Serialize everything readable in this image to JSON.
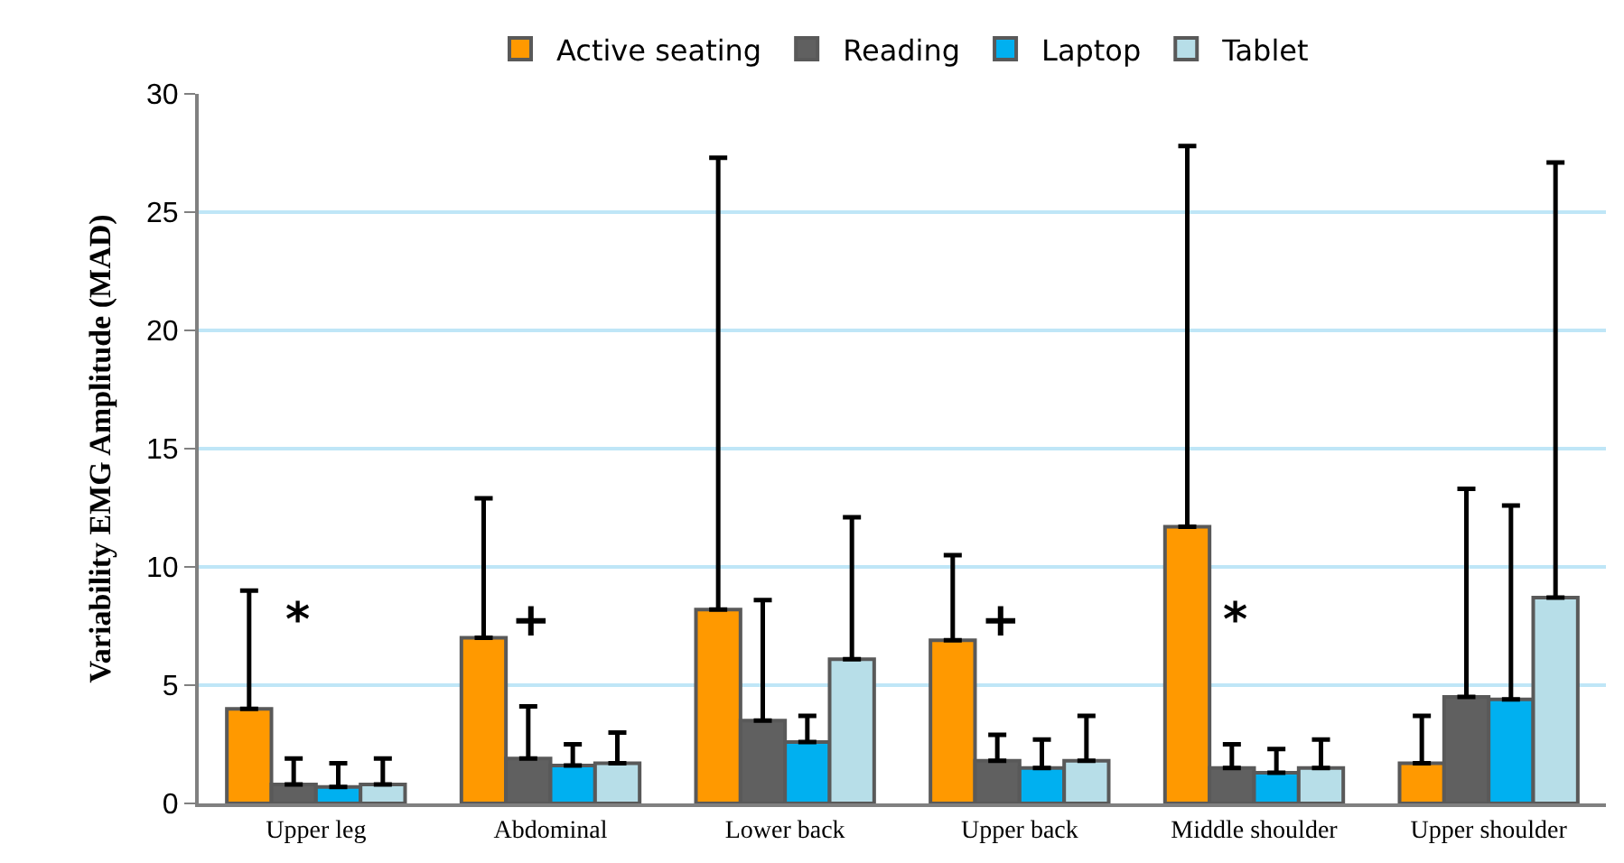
{
  "chart_data": {
    "type": "bar",
    "ylabel": "Variability EMG Amplitude (MAD)",
    "categories": [
      "Upper leg",
      "Abdominal",
      "Lower back",
      "Upper back",
      "Middle shoulder",
      "Upper shoulder"
    ],
    "series": [
      {
        "name": "Active seating",
        "color": "#ff9900",
        "values": [
          4.0,
          7.0,
          8.2,
          6.9,
          11.7,
          1.7
        ],
        "errors": [
          [
            4.0,
            9.0
          ],
          [
            7.0,
            12.9
          ],
          [
            8.2,
            27.3
          ],
          [
            6.9,
            10.5
          ],
          [
            11.7,
            27.8
          ],
          [
            1.7,
            3.7
          ]
        ]
      },
      {
        "name": "Reading",
        "color": "#606060",
        "values": [
          0.8,
          1.9,
          3.5,
          1.8,
          1.5,
          4.5
        ],
        "errors": [
          [
            0.8,
            1.9
          ],
          [
            1.9,
            4.1
          ],
          [
            3.5,
            8.6
          ],
          [
            1.8,
            2.9
          ],
          [
            1.5,
            2.5
          ],
          [
            4.5,
            13.3
          ]
        ]
      },
      {
        "name": "Laptop",
        "color": "#00b0f0",
        "values": [
          0.7,
          1.6,
          2.6,
          1.5,
          1.3,
          4.4
        ],
        "errors": [
          [
            0.7,
            1.7
          ],
          [
            1.6,
            2.5
          ],
          [
            2.6,
            3.7
          ],
          [
            1.5,
            2.7
          ],
          [
            1.3,
            2.3
          ],
          [
            4.4,
            12.6
          ]
        ]
      },
      {
        "name": "Tablet",
        "color": "#b7dee8",
        "values": [
          0.8,
          1.7,
          6.1,
          1.8,
          1.5,
          8.7
        ],
        "errors": [
          [
            0.8,
            1.9
          ],
          [
            1.7,
            3.0
          ],
          [
            6.1,
            12.1
          ],
          [
            1.8,
            3.7
          ],
          [
            1.5,
            2.7
          ],
          [
            8.7,
            27.1
          ]
        ]
      }
    ],
    "annotations": [
      "*",
      "+",
      "+",
      "*"
    ],
    "ylim": [
      0,
      30
    ],
    "yticks": [
      0,
      5,
      10,
      15,
      20,
      25,
      30
    ],
    "grid": "y",
    "legend": "top"
  }
}
